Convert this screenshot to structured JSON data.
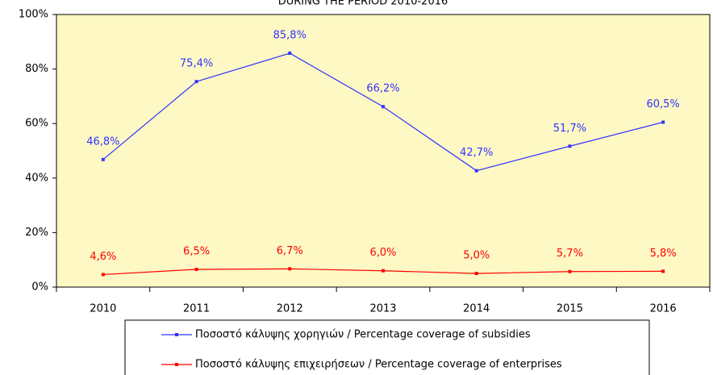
{
  "chart_data": {
    "type": "line",
    "title": "DURING THE PERIOD 2010-2016",
    "categories": [
      "2010",
      "2011",
      "2012",
      "2013",
      "2014",
      "2015",
      "2016"
    ],
    "series": [
      {
        "name": "Ποσοστό κάλυψης χορηγιών / Percentage coverage of subsidies",
        "color": "#3333ff",
        "values": [
          46.8,
          75.4,
          85.8,
          66.2,
          42.7,
          51.7,
          60.5
        ],
        "value_labels": [
          "46,8%",
          "75,4%",
          "85,8%",
          "66,2%",
          "42,7%",
          "51,7%",
          "60,5%"
        ]
      },
      {
        "name": "Ποσοστό κάλυψης επιχειρήσεων / Percentage coverage of enterprises",
        "color": "#ff0000",
        "values": [
          4.6,
          6.5,
          6.7,
          6.0,
          5.0,
          5.7,
          5.8
        ],
        "value_labels": [
          "4,6%",
          "6,5%",
          "6,7%",
          "6,0%",
          "5,0%",
          "5,7%",
          "5,8%"
        ]
      }
    ],
    "ylim": [
      0,
      100
    ],
    "yticks": [
      {
        "value": 0,
        "label": "0%"
      },
      {
        "value": 20,
        "label": "20%"
      },
      {
        "value": 40,
        "label": "40%"
      },
      {
        "value": 60,
        "label": "60%"
      },
      {
        "value": 80,
        "label": "80%"
      },
      {
        "value": 100,
        "label": "100%"
      }
    ],
    "grid": false,
    "plot_background": "#fdf8c4"
  }
}
